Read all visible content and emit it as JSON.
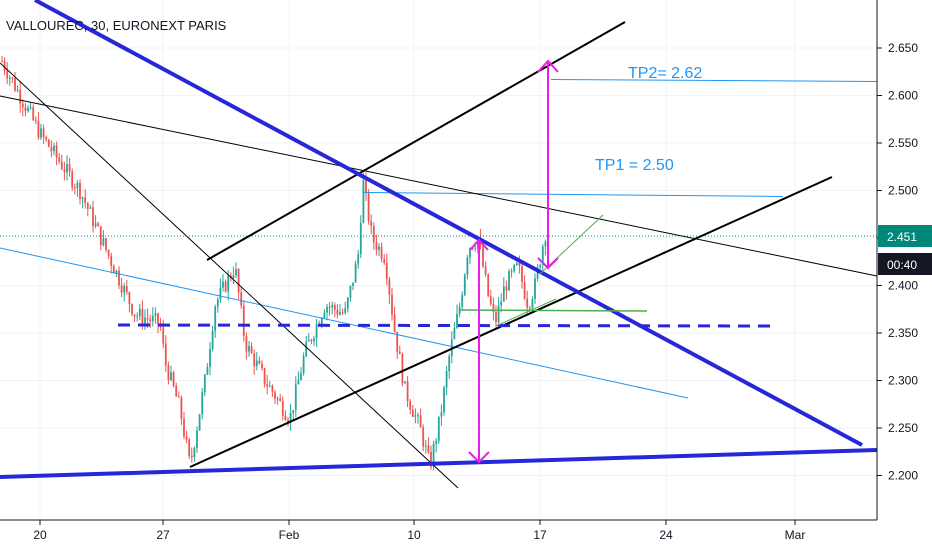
{
  "header": {
    "title": "VALLOUREC, 30, EURONEXT PARIS"
  },
  "colors": {
    "up": "#26a69a",
    "down": "#ef5350",
    "trend_blue": "#2727d9",
    "thin_blue": "#2196f3",
    "black": "#000000",
    "magenta": "#e91ee9",
    "green": "#4caf50",
    "price_badge": "#00897b",
    "time_badge": "#131722",
    "grid": "#f0f3fa",
    "axis": "#131722"
  },
  "badges": {
    "price": "2.451",
    "countdown": "00:40"
  },
  "annotations": {
    "tp1": "TP1 = 2.50",
    "tp2": "TP2= 2.62"
  },
  "chart_data": {
    "type": "candlestick",
    "title": "VALLOUREC, 30, EURONEXT PARIS",
    "x_ticks": [
      "20",
      "27",
      "Feb",
      "10",
      "17",
      "24",
      "Mar"
    ],
    "y_ticks": [
      "2.650",
      "2.600",
      "2.550",
      "2.500",
      "2.450",
      "2.400",
      "2.350",
      "2.300",
      "2.250",
      "2.200"
    ],
    "ylim": [
      2.17,
      2.69
    ],
    "current_price": 2.451,
    "levels": {
      "tp1": 2.5,
      "tp2": 2.62,
      "support": 2.356
    },
    "price_path": [
      [
        0,
        2.64
      ],
      [
        40,
        2.56
      ],
      [
        80,
        2.5
      ],
      [
        105,
        2.44
      ],
      [
        135,
        2.37
      ],
      [
        160,
        2.36
      ],
      [
        165,
        2.32
      ],
      [
        180,
        2.27
      ],
      [
        190,
        2.21
      ],
      [
        205,
        2.3
      ],
      [
        215,
        2.38
      ],
      [
        235,
        2.42
      ],
      [
        245,
        2.34
      ],
      [
        265,
        2.3
      ],
      [
        290,
        2.26
      ],
      [
        305,
        2.33
      ],
      [
        325,
        2.38
      ],
      [
        345,
        2.37
      ],
      [
        358,
        2.43
      ],
      [
        363,
        2.51
      ],
      [
        372,
        2.45
      ],
      [
        385,
        2.43
      ],
      [
        395,
        2.35
      ],
      [
        405,
        2.29
      ],
      [
        420,
        2.25
      ],
      [
        430,
        2.21
      ],
      [
        440,
        2.26
      ],
      [
        450,
        2.33
      ],
      [
        460,
        2.38
      ],
      [
        468,
        2.44
      ],
      [
        478,
        2.45
      ],
      [
        488,
        2.39
      ],
      [
        495,
        2.36
      ],
      [
        505,
        2.4
      ],
      [
        518,
        2.42
      ],
      [
        528,
        2.38
      ],
      [
        535,
        2.4
      ],
      [
        545,
        2.455
      ]
    ]
  }
}
